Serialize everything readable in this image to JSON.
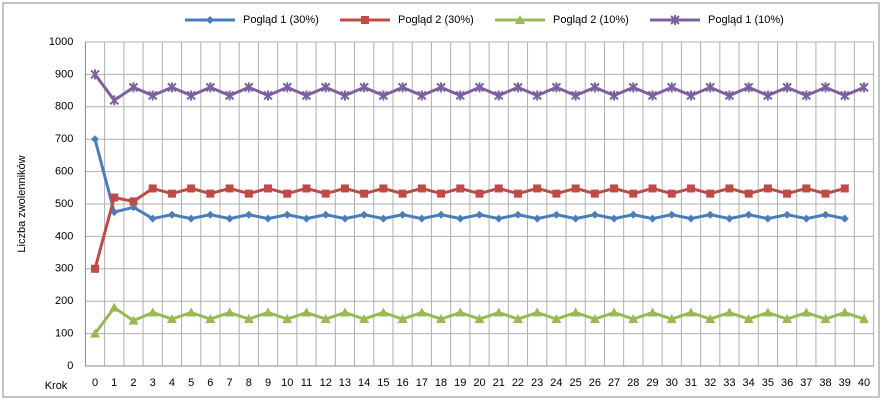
{
  "chart_data": {
    "type": "line",
    "ylabel": "Liczba zwolenników",
    "xlabel": "Krok",
    "categories": [
      0,
      1,
      2,
      3,
      4,
      5,
      6,
      7,
      8,
      9,
      10,
      11,
      12,
      13,
      14,
      15,
      16,
      17,
      18,
      19,
      20,
      21,
      22,
      23,
      24,
      25,
      26,
      27,
      28,
      29,
      30,
      31,
      32,
      33,
      34,
      35,
      36,
      37,
      38,
      39,
      40
    ],
    "ylim": [
      0,
      1000
    ],
    "yticks": [
      0,
      100,
      200,
      300,
      400,
      500,
      600,
      700,
      800,
      900,
      1000
    ],
    "grid": true,
    "legend": "top",
    "series": [
      {
        "name": "Pogląd 1 (30%)",
        "color": "#4a7ebb",
        "marker": "diamond",
        "values": [
          700,
          475,
          490,
          455,
          467,
          455,
          467,
          455,
          467,
          455,
          467,
          455,
          467,
          455,
          467,
          455,
          467,
          455,
          467,
          455,
          467,
          455,
          467,
          455,
          467,
          455,
          467,
          455,
          467,
          455,
          467,
          455,
          467,
          455,
          467,
          455,
          467,
          455,
          467,
          455,
          null
        ]
      },
      {
        "name": "Pogląd 2 (30%)",
        "color": "#be4b48",
        "marker": "square",
        "values": [
          300,
          520,
          508,
          548,
          532,
          548,
          532,
          548,
          532,
          548,
          532,
          548,
          532,
          548,
          532,
          548,
          532,
          548,
          532,
          548,
          532,
          548,
          532,
          548,
          532,
          548,
          532,
          548,
          532,
          548,
          532,
          548,
          532,
          548,
          532,
          548,
          532,
          548,
          532,
          548,
          null
        ]
      },
      {
        "name": "Pogląd 2 (10%)",
        "color": "#98b954",
        "marker": "triangle",
        "values": [
          100,
          180,
          140,
          165,
          145,
          165,
          145,
          165,
          145,
          165,
          145,
          165,
          145,
          165,
          145,
          165,
          145,
          165,
          145,
          165,
          145,
          165,
          145,
          165,
          145,
          165,
          145,
          165,
          145,
          165,
          145,
          165,
          145,
          165,
          145,
          165,
          145,
          165,
          145,
          165,
          145
        ]
      },
      {
        "name": "Pogląd 1 (10%)",
        "color": "#7d60a0",
        "marker": "x",
        "values": [
          900,
          820,
          860,
          835,
          860,
          835,
          860,
          835,
          860,
          835,
          860,
          835,
          860,
          835,
          860,
          835,
          860,
          835,
          860,
          835,
          860,
          835,
          860,
          835,
          860,
          835,
          860,
          835,
          860,
          835,
          860,
          835,
          860,
          835,
          860,
          835,
          860,
          835,
          860,
          835,
          860
        ]
      }
    ]
  }
}
